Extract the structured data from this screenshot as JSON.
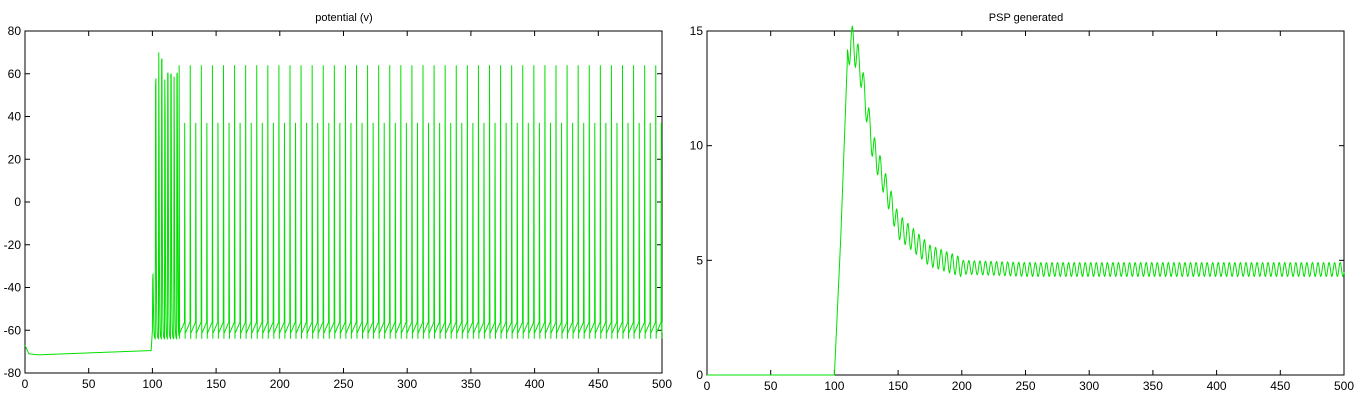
{
  "chart_data": [
    {
      "type": "line",
      "title": "potential (v)",
      "xlabel": "",
      "ylabel": "",
      "xlim": [
        0,
        500
      ],
      "ylim": [
        -80,
        80
      ],
      "xticks": [
        0,
        50,
        100,
        150,
        200,
        250,
        300,
        350,
        400,
        450,
        500
      ],
      "yticks": [
        -80,
        -60,
        -40,
        -20,
        0,
        20,
        40,
        60,
        80
      ],
      "grid": false,
      "legend": "none",
      "line_color": "#00e000",
      "series": [
        {
          "description_points": [
            {
              "x": 0,
              "y": -67
            },
            {
              "x": 3,
              "y": -71
            },
            {
              "x": 10,
              "y": -71.5
            },
            {
              "x": 99,
              "y": -69.5
            },
            {
              "x": 100,
              "y": -60
            },
            {
              "x": 101,
              "y": 35
            },
            {
              "x": 103,
              "y": 61
            },
            {
              "x": 105,
              "y": 70
            },
            {
              "x": 108,
              "y": 66
            },
            {
              "x": 110,
              "y": 56
            },
            {
              "x": 113,
              "y": 62
            },
            {
              "x": 116,
              "y": 58
            },
            {
              "x": 121,
              "y": 61
            }
          ],
          "spike_peak_mV": 64,
          "spike_alt_peak_mV": 37,
          "spike_trough_mV": -64,
          "spike_interval_ms": 4.35,
          "spike_start_ms": 100,
          "spike_end_ms": 500
        }
      ]
    },
    {
      "type": "line",
      "title": "PSP generated",
      "xlabel": "",
      "ylabel": "",
      "xlim": [
        0,
        500
      ],
      "ylim": [
        0,
        15
      ],
      "xticks": [
        0,
        50,
        100,
        150,
        200,
        250,
        300,
        350,
        400,
        450,
        500
      ],
      "yticks": [
        0,
        5,
        10,
        15
      ],
      "grid": false,
      "legend": "none",
      "line_color": "#00e000",
      "series": [
        {
          "description_points": [
            {
              "x": 0,
              "y": 0
            },
            {
              "x": 100,
              "y": 0
            },
            {
              "x": 105,
              "y": 6
            },
            {
              "x": 110,
              "y": 13.5
            },
            {
              "x": 113,
              "y": 14.7
            },
            {
              "x": 120,
              "y": 13.5
            },
            {
              "x": 130,
              "y": 10
            },
            {
              "x": 150,
              "y": 6.5
            },
            {
              "x": 175,
              "y": 5.2
            },
            {
              "x": 200,
              "y": 4.7
            },
            {
              "x": 250,
              "y": 4.6
            },
            {
              "x": 500,
              "y": 4.6
            }
          ],
          "steady_state_mean": 4.55,
          "ripple_amplitude": 0.3,
          "ripple_period_ms": 4.35
        }
      ]
    }
  ]
}
